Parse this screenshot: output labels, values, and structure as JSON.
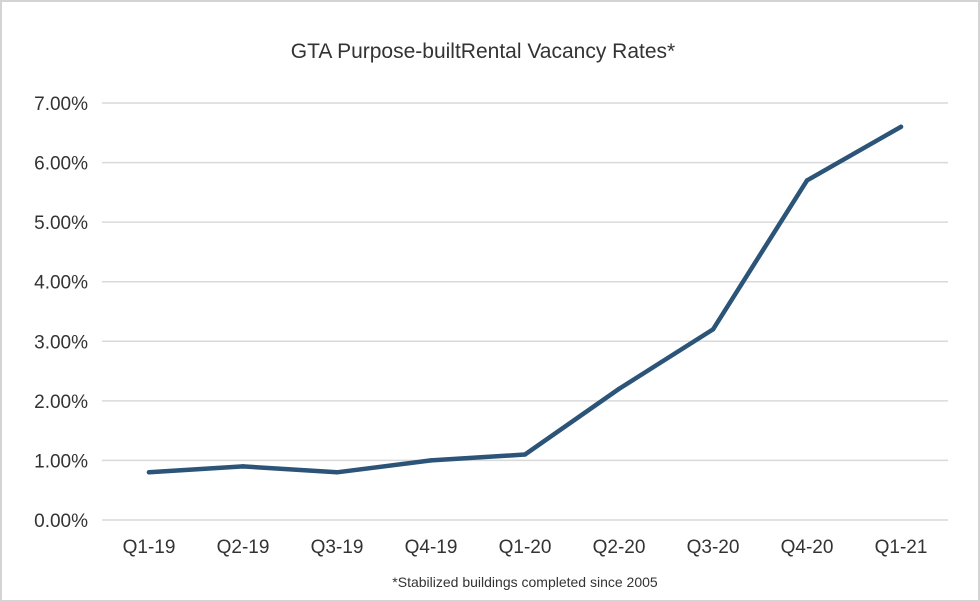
{
  "chart_data": {
    "type": "line",
    "title": "GTA Purpose-builtRental Vacancy Rates*",
    "footnote": "*Stabilized buildings completed since 2005",
    "categories": [
      "Q1-19",
      "Q2-19",
      "Q3-19",
      "Q4-19",
      "Q1-20",
      "Q2-20",
      "Q3-20",
      "Q4-20",
      "Q1-21"
    ],
    "series": [
      {
        "values": [
          0.8,
          0.9,
          0.8,
          1.0,
          1.1,
          2.2,
          3.2,
          5.7,
          6.6
        ]
      }
    ],
    "y_ticks": [
      "0.00%",
      "1.00%",
      "2.00%",
      "3.00%",
      "4.00%",
      "5.00%",
      "6.00%",
      "7.00%"
    ],
    "ylim": [
      0,
      7
    ],
    "grid": true,
    "legend": "none",
    "line_color": "#2b5478"
  }
}
